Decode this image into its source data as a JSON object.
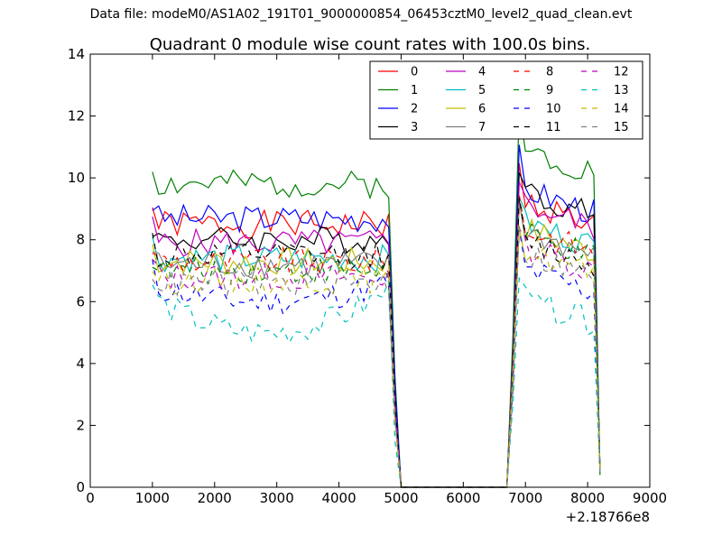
{
  "figure": {
    "suptitle": "Data file: modeM0/AS1A02_191T01_9000000854_06453cztM0_level2_quad_clean.evt"
  },
  "chart_data": {
    "type": "line",
    "title": "Quadrant 0 module wise count rates with 100.0s bins.",
    "xlabel": "",
    "ylabel": "",
    "x_offset_label": "+2.18766e8",
    "xlim": [
      0,
      9000
    ],
    "ylim": [
      0,
      14
    ],
    "xticks": [
      0,
      1000,
      2000,
      3000,
      4000,
      5000,
      6000,
      7000,
      8000,
      9000
    ],
    "yticks": [
      0,
      2,
      4,
      6,
      8,
      10,
      12,
      14
    ],
    "xtick_labels": [
      "0",
      "1000",
      "2000",
      "3000",
      "4000",
      "5000",
      "6000",
      "7000",
      "8000",
      "9000"
    ],
    "ytick_labels": [
      "0",
      "2",
      "4",
      "6",
      "8",
      "10",
      "12",
      "14"
    ],
    "grid": false,
    "legend_position": "top-right",
    "legend_columns": 4,
    "x": [
      1000,
      1100,
      1200,
      1300,
      1400,
      1500,
      1600,
      1700,
      1800,
      1900,
      2000,
      2100,
      2200,
      2300,
      2400,
      2500,
      2600,
      2700,
      2800,
      2900,
      3000,
      3100,
      3200,
      3300,
      3400,
      3500,
      3600,
      3700,
      3800,
      3900,
      4000,
      4100,
      4200,
      4300,
      4400,
      4500,
      4600,
      4700,
      4800,
      4900,
      5000,
      5100,
      5200,
      5300,
      5400,
      5500,
      5600,
      5700,
      5800,
      5900,
      6000,
      6100,
      6200,
      6300,
      6400,
      6500,
      6600,
      6700,
      6800,
      6900,
      7000,
      7100,
      7200,
      7300,
      7400,
      7500,
      7600,
      7700,
      7800,
      7900,
      8000,
      8100,
      8200
    ],
    "series": [
      {
        "name": "0",
        "color": "#ff0000",
        "dash": "solid",
        "level1": 8.5,
        "level2": 9.3
      },
      {
        "name": "1",
        "color": "#008000",
        "dash": "solid",
        "level1": 9.8,
        "level2": 11.0
      },
      {
        "name": "2",
        "color": "#0000ff",
        "dash": "solid",
        "level1": 8.7,
        "level2": 9.7
      },
      {
        "name": "3",
        "color": "#000000",
        "dash": "solid",
        "level1": 8.0,
        "level2": 9.6
      },
      {
        "name": "4",
        "color": "#bf00bf",
        "dash": "solid",
        "level1": 7.9,
        "level2": 9.2
      },
      {
        "name": "5",
        "color": "#00bfbf",
        "dash": "solid",
        "level1": 7.4,
        "level2": 8.6
      },
      {
        "name": "6",
        "color": "#bfbf00",
        "dash": "solid",
        "level1": 7.3,
        "level2": 8.4
      },
      {
        "name": "7",
        "color": "#808080",
        "dash": "solid",
        "level1": 7.2,
        "level2": 8.3
      },
      {
        "name": "8",
        "color": "#ff0000",
        "dash": "dashed",
        "level1": 7.3,
        "level2": 8.4
      },
      {
        "name": "9",
        "color": "#008000",
        "dash": "dashed",
        "level1": 7.0,
        "level2": 8.2
      },
      {
        "name": "10",
        "color": "#0000ff",
        "dash": "dashed",
        "level1": 6.0,
        "level2": 7.1
      },
      {
        "name": "11",
        "color": "#000000",
        "dash": "dashed",
        "level1": 7.5,
        "level2": 8.0
      },
      {
        "name": "12",
        "color": "#bf00bf",
        "dash": "dashed",
        "level1": 6.8,
        "level2": 7.8
      },
      {
        "name": "13",
        "color": "#00bfbf",
        "dash": "dashed",
        "level1": 5.0,
        "level2": 6.1
      },
      {
        "name": "14",
        "color": "#bfbf00",
        "dash": "dashed",
        "level1": 6.7,
        "level2": 7.7
      },
      {
        "name": "15",
        "color": "#808080",
        "dash": "dashed",
        "level1": 6.6,
        "level2": 7.6
      }
    ]
  }
}
